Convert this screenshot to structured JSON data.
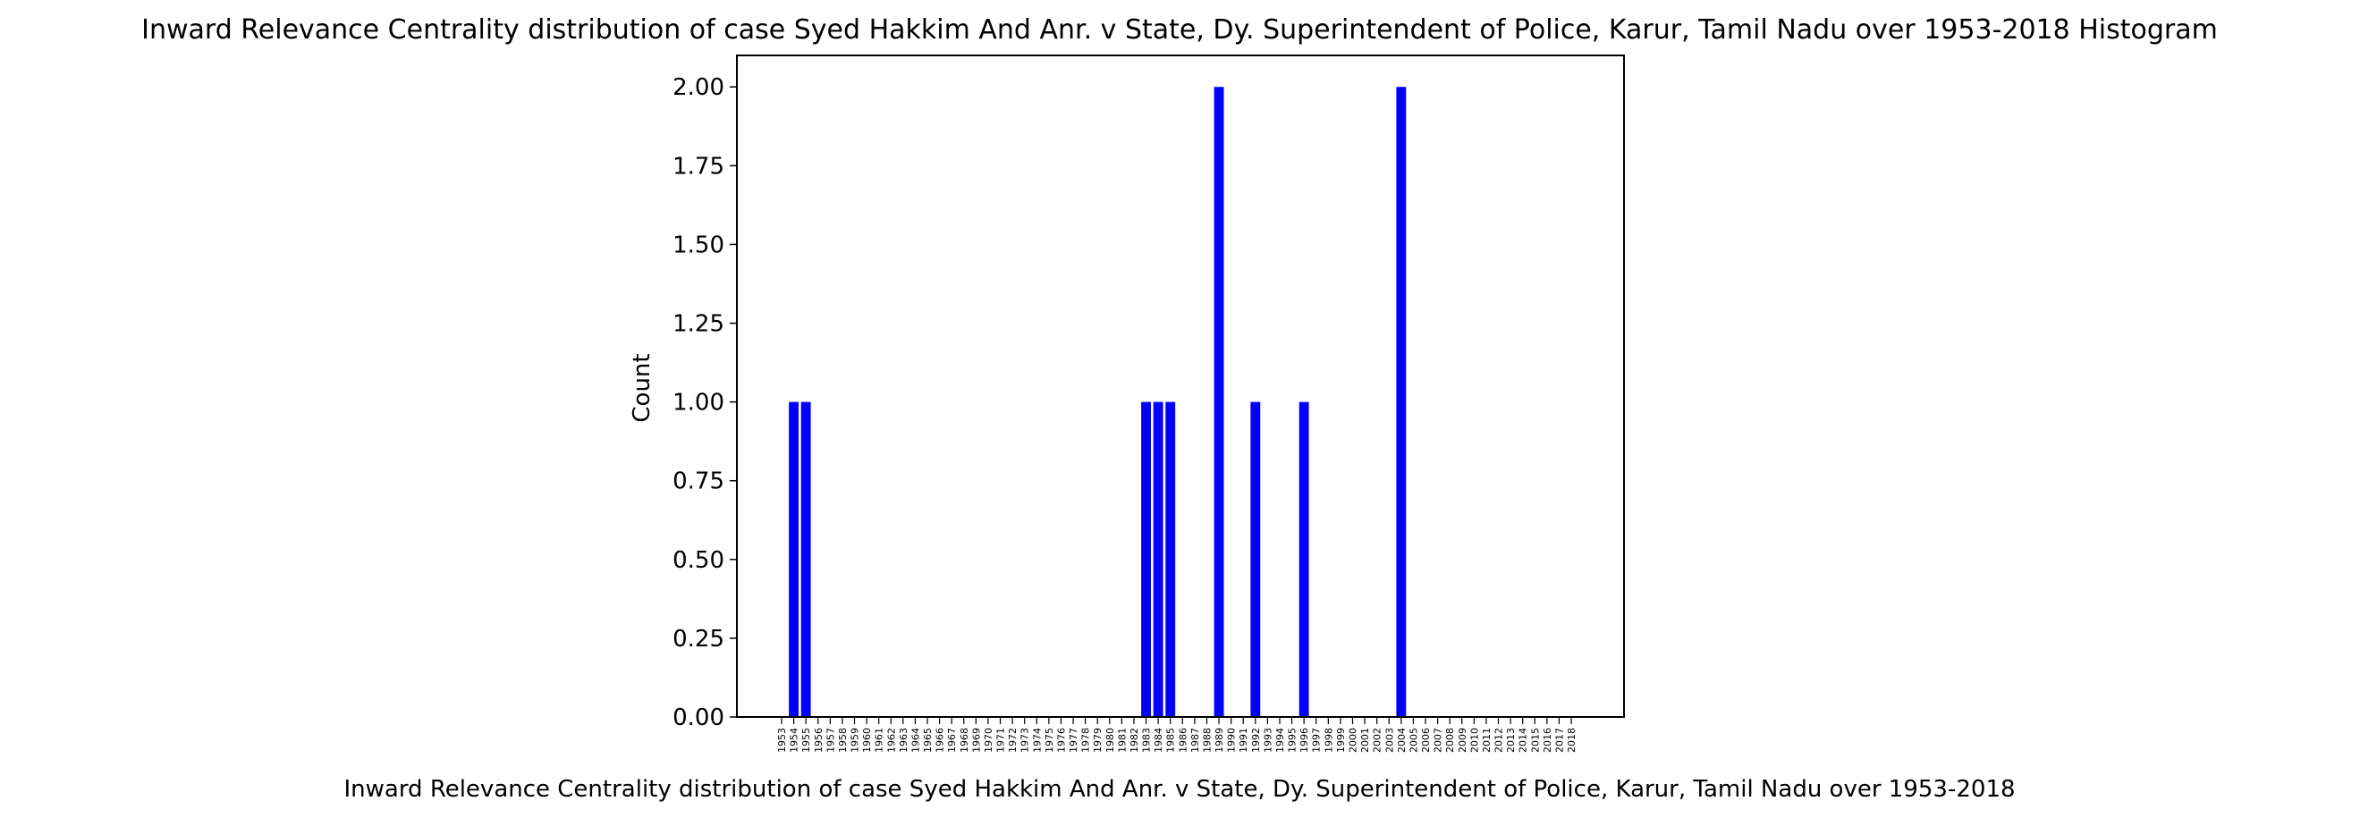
{
  "chart_data": {
    "type": "bar",
    "title": "Inward Relevance Centrality distribution of case Syed Hakkim And Anr. v State, Dy. Superintendent of Police, Karur, Tamil Nadu over 1953-2018 Histogram",
    "xlabel": "Inward Relevance Centrality distribution of case Syed Hakkim And Anr. v State, Dy. Superintendent of Police, Karur, Tamil Nadu over 1953-2018",
    "ylabel": "Count",
    "ylim": [
      0,
      2.1
    ],
    "yticks": [
      "0.00",
      "0.25",
      "0.50",
      "0.75",
      "1.00",
      "1.25",
      "1.50",
      "1.75",
      "2.00"
    ],
    "grid": false,
    "bar_color": "#0000ff",
    "categories": [
      "1953",
      "1954",
      "1955",
      "1956",
      "1957",
      "1958",
      "1959",
      "1960",
      "1961",
      "1962",
      "1963",
      "1964",
      "1965",
      "1966",
      "1967",
      "1968",
      "1969",
      "1970",
      "1971",
      "1972",
      "1973",
      "1974",
      "1975",
      "1976",
      "1977",
      "1978",
      "1979",
      "1980",
      "1981",
      "1982",
      "1983",
      "1984",
      "1985",
      "1986",
      "1987",
      "1988",
      "1989",
      "1990",
      "1991",
      "1992",
      "1993",
      "1994",
      "1995",
      "1996",
      "1997",
      "1998",
      "1999",
      "2000",
      "2001",
      "2002",
      "2003",
      "2004",
      "2005",
      "2006",
      "2007",
      "2008",
      "2009",
      "2010",
      "2011",
      "2012",
      "2013",
      "2014",
      "2015",
      "2016",
      "2017",
      "2018"
    ],
    "values": [
      0,
      1,
      1,
      0,
      0,
      0,
      0,
      0,
      0,
      0,
      0,
      0,
      0,
      0,
      0,
      0,
      0,
      0,
      0,
      0,
      0,
      0,
      0,
      0,
      0,
      0,
      0,
      0,
      0,
      0,
      1,
      1,
      1,
      0,
      0,
      0,
      2,
      0,
      0,
      1,
      0,
      0,
      0,
      1,
      0,
      0,
      0,
      0,
      0,
      0,
      0,
      2,
      0,
      0,
      0,
      0,
      0,
      0,
      0,
      0,
      0,
      0,
      0,
      0,
      0,
      0
    ]
  }
}
